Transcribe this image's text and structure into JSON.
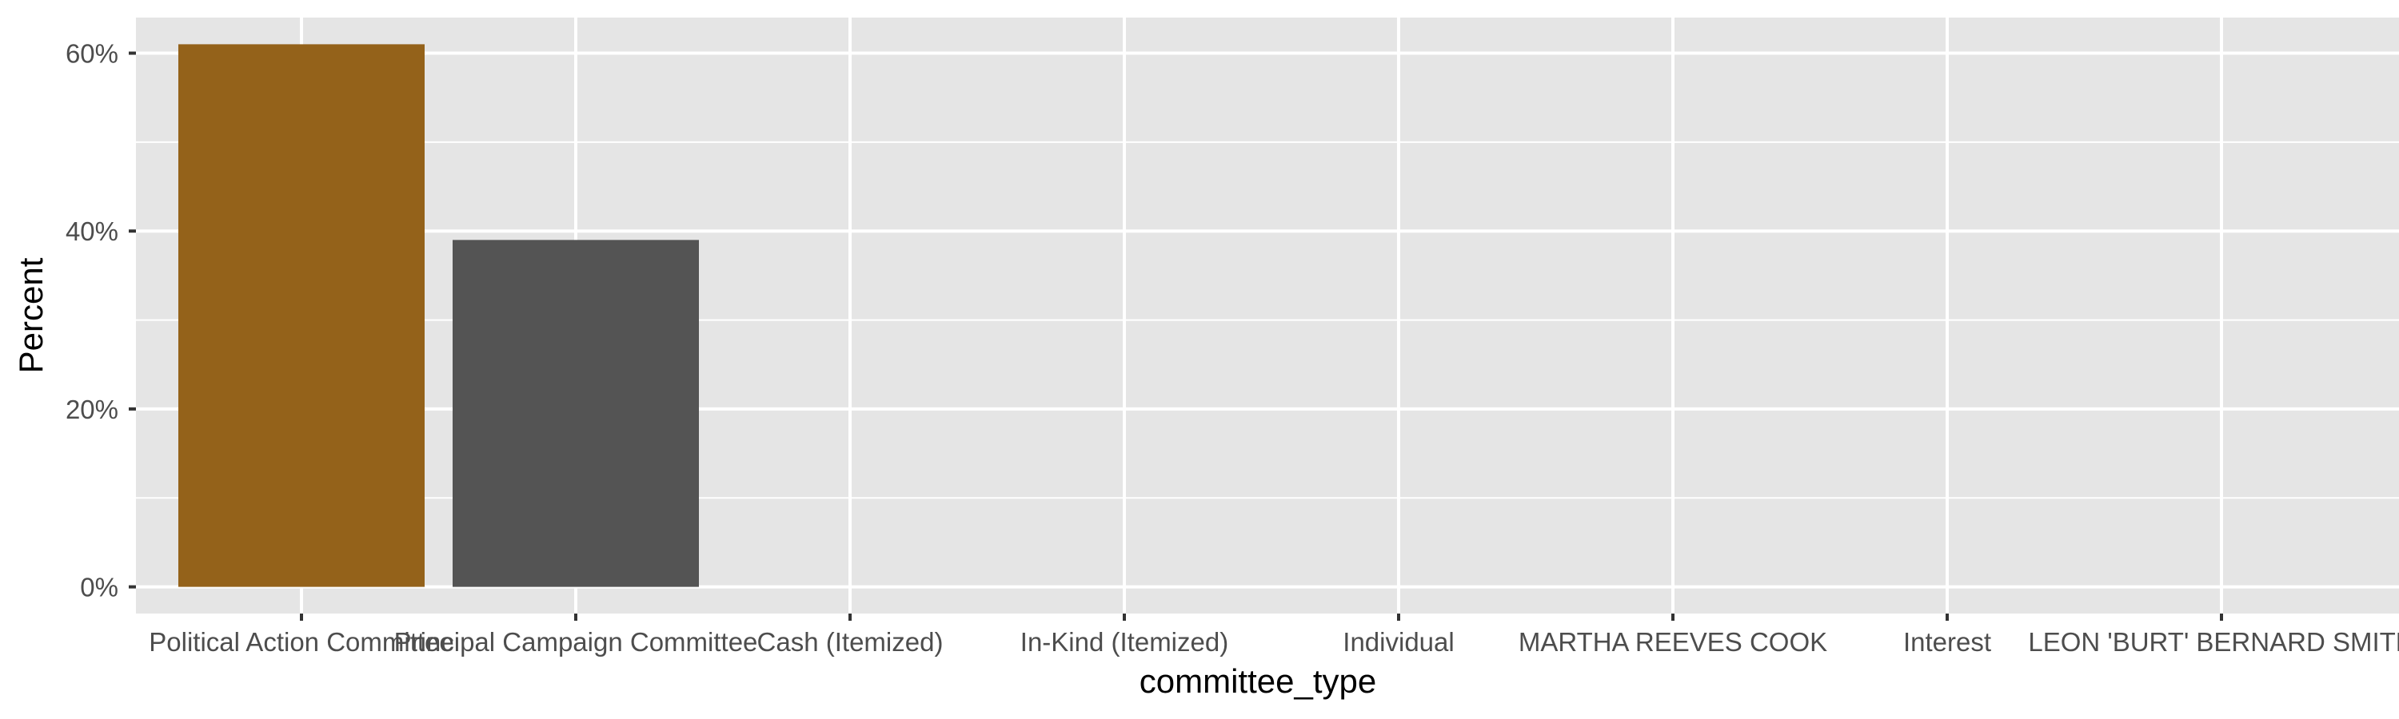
{
  "chart_data": {
    "type": "bar",
    "xlabel": "committee_type",
    "ylabel": "Percent",
    "categories": [
      "Political Action Committee",
      "Principal Campaign Committee",
      "Cash (Itemized)",
      "In-Kind (Itemized)",
      "Individual",
      "MARTHA REEVES COOK",
      "Interest",
      "LEON 'BURT' BERNARD SMITH"
    ],
    "values": [
      61,
      39,
      0,
      0,
      0,
      0,
      0,
      0
    ],
    "bar_colors": [
      "#94621a",
      "#545454",
      "#545454",
      "#545454",
      "#545454",
      "#545454",
      "#545454",
      "#545454"
    ],
    "y_ticks": [
      {
        "value": 0,
        "label": "0%"
      },
      {
        "value": 20,
        "label": "20%"
      },
      {
        "value": 40,
        "label": "40%"
      },
      {
        "value": 60,
        "label": "60%"
      }
    ],
    "ylim": [
      -3,
      64
    ],
    "grid": true,
    "panel_background": "#e5e5e5",
    "grid_color": "#ffffff"
  }
}
